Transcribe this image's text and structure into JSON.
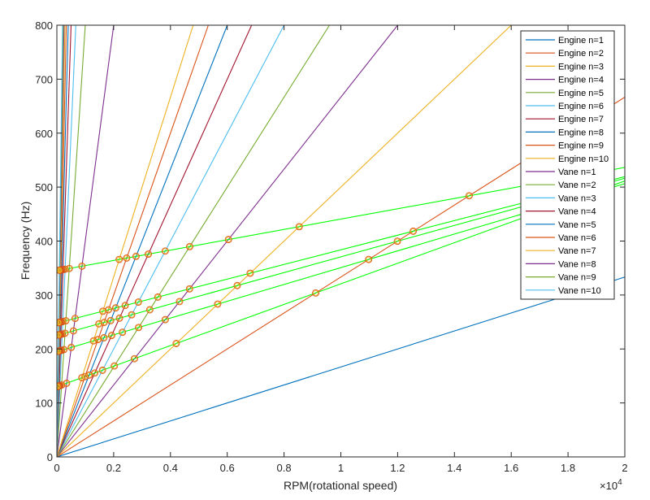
{
  "chart_data": {
    "type": "line",
    "xlabel": "RPM(rotational speed)",
    "ylabel": "Frequency (Hz)",
    "x_exponent_label": "×10",
    "x_exponent_power": "4",
    "xlim": [
      0,
      20000
    ],
    "ylim": [
      0,
      800
    ],
    "x_tick_values": [
      0,
      2000,
      4000,
      6000,
      8000,
      10000,
      12000,
      14000,
      16000,
      18000,
      20000
    ],
    "x_tick_labels": [
      "0",
      "0.2",
      "0.4",
      "0.6",
      "0.8",
      "1",
      "1.2",
      "1.4",
      "1.6",
      "1.8",
      "2"
    ],
    "y_tick_values": [
      0,
      100,
      200,
      300,
      400,
      500,
      600,
      700,
      800
    ],
    "y_tick_labels": [
      "0",
      "100",
      "200",
      "300",
      "400",
      "500",
      "600",
      "700",
      "800"
    ],
    "legend_position": "top-right",
    "grid": false,
    "series": [
      {
        "name": "Engine n=1",
        "color": "#0072BD",
        "y_per_rpm": 0.016667
      },
      {
        "name": "Engine n=2",
        "color": "#D95319",
        "y_per_rpm": 0.033333
      },
      {
        "name": "Engine n=3",
        "color": "#EDB120",
        "y_per_rpm": 0.05
      },
      {
        "name": "Engine n=4",
        "color": "#7E2F8E",
        "y_per_rpm": 0.066667
      },
      {
        "name": "Engine n=5",
        "color": "#77AC30",
        "y_per_rpm": 0.083333
      },
      {
        "name": "Engine n=6",
        "color": "#4DBEEE",
        "y_per_rpm": 0.1
      },
      {
        "name": "Engine n=7",
        "color": "#A2142F",
        "y_per_rpm": 0.116667
      },
      {
        "name": "Engine n=8",
        "color": "#0072BD",
        "y_per_rpm": 0.133333
      },
      {
        "name": "Engine n=9",
        "color": "#D95319",
        "y_per_rpm": 0.15
      },
      {
        "name": "Engine n=10",
        "color": "#EDB120",
        "y_per_rpm": 0.166667
      },
      {
        "name": "Vane n=1",
        "color": "#7E2F8E",
        "y_per_rpm": 0.4
      },
      {
        "name": "Vane n=2",
        "color": "#77AC30",
        "y_per_rpm": 0.8
      },
      {
        "name": "Vane n=3",
        "color": "#4DBEEE",
        "y_per_rpm": 1.2
      },
      {
        "name": "Vane n=4",
        "color": "#A2142F",
        "y_per_rpm": 1.6
      },
      {
        "name": "Vane n=5",
        "color": "#0072BD",
        "y_per_rpm": 2.0
      },
      {
        "name": "Vane n=6",
        "color": "#D95319",
        "y_per_rpm": 2.4
      },
      {
        "name": "Vane n=7",
        "color": "#EDB120",
        "y_per_rpm": 2.8
      },
      {
        "name": "Vane n=8",
        "color": "#7E2F8E",
        "y_per_rpm": 3.2
      },
      {
        "name": "Vane n=9",
        "color": "#77AC30",
        "y_per_rpm": 3.6
      },
      {
        "name": "Vane n=10",
        "color": "#4DBEEE",
        "y_per_rpm": 4.0
      }
    ],
    "mode_lines": {
      "color": "#00FF00",
      "lines": [
        {
          "y0": 345,
          "y_per_rpm": 0.00957
        },
        {
          "y0": 248,
          "y_per_rpm": 0.01357
        },
        {
          "y0": 225,
          "y_per_rpm": 0.01457
        },
        {
          "y0": 195,
          "y_per_rpm": 0.01557
        },
        {
          "y0": 130,
          "y_per_rpm": 0.01907
        }
      ]
    },
    "intersection_marker": {
      "edge_color": "#D95319",
      "fill_color": "#EDB120"
    }
  }
}
